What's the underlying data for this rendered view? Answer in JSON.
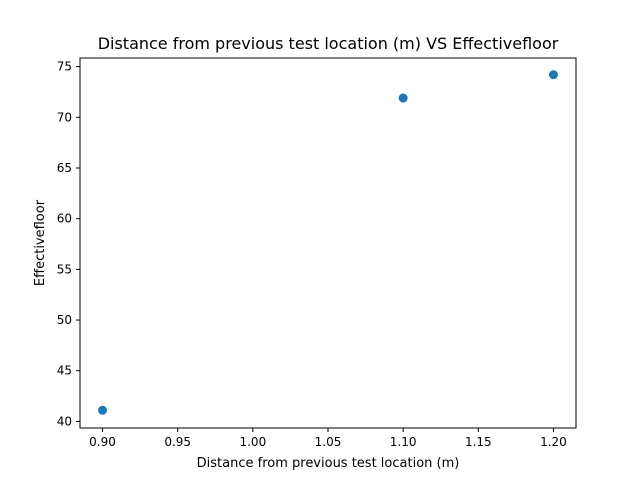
{
  "chart_data": {
    "type": "scatter",
    "title": "Distance from previous test location (m) VS Effectivefloor",
    "xlabel": "Distance from previous test location (m)",
    "ylabel": "Effectivefloor",
    "xlim": [
      0.885,
      1.215
    ],
    "ylim": [
      39.35,
      75.85
    ],
    "xticks": [
      0.9,
      0.95,
      1.0,
      1.05,
      1.1,
      1.15,
      1.2
    ],
    "xtick_labels": [
      "0.90",
      "0.95",
      "1.00",
      "1.05",
      "1.10",
      "1.15",
      "1.20"
    ],
    "yticks": [
      40,
      45,
      50,
      55,
      60,
      65,
      70,
      75
    ],
    "ytick_labels": [
      "40",
      "45",
      "50",
      "55",
      "60",
      "65",
      "70",
      "75"
    ],
    "grid": false,
    "marker_color": "#1f77b4",
    "points": [
      {
        "x": 0.9,
        "y": 41.1
      },
      {
        "x": 1.1,
        "y": 71.9
      },
      {
        "x": 1.2,
        "y": 74.2
      }
    ]
  }
}
